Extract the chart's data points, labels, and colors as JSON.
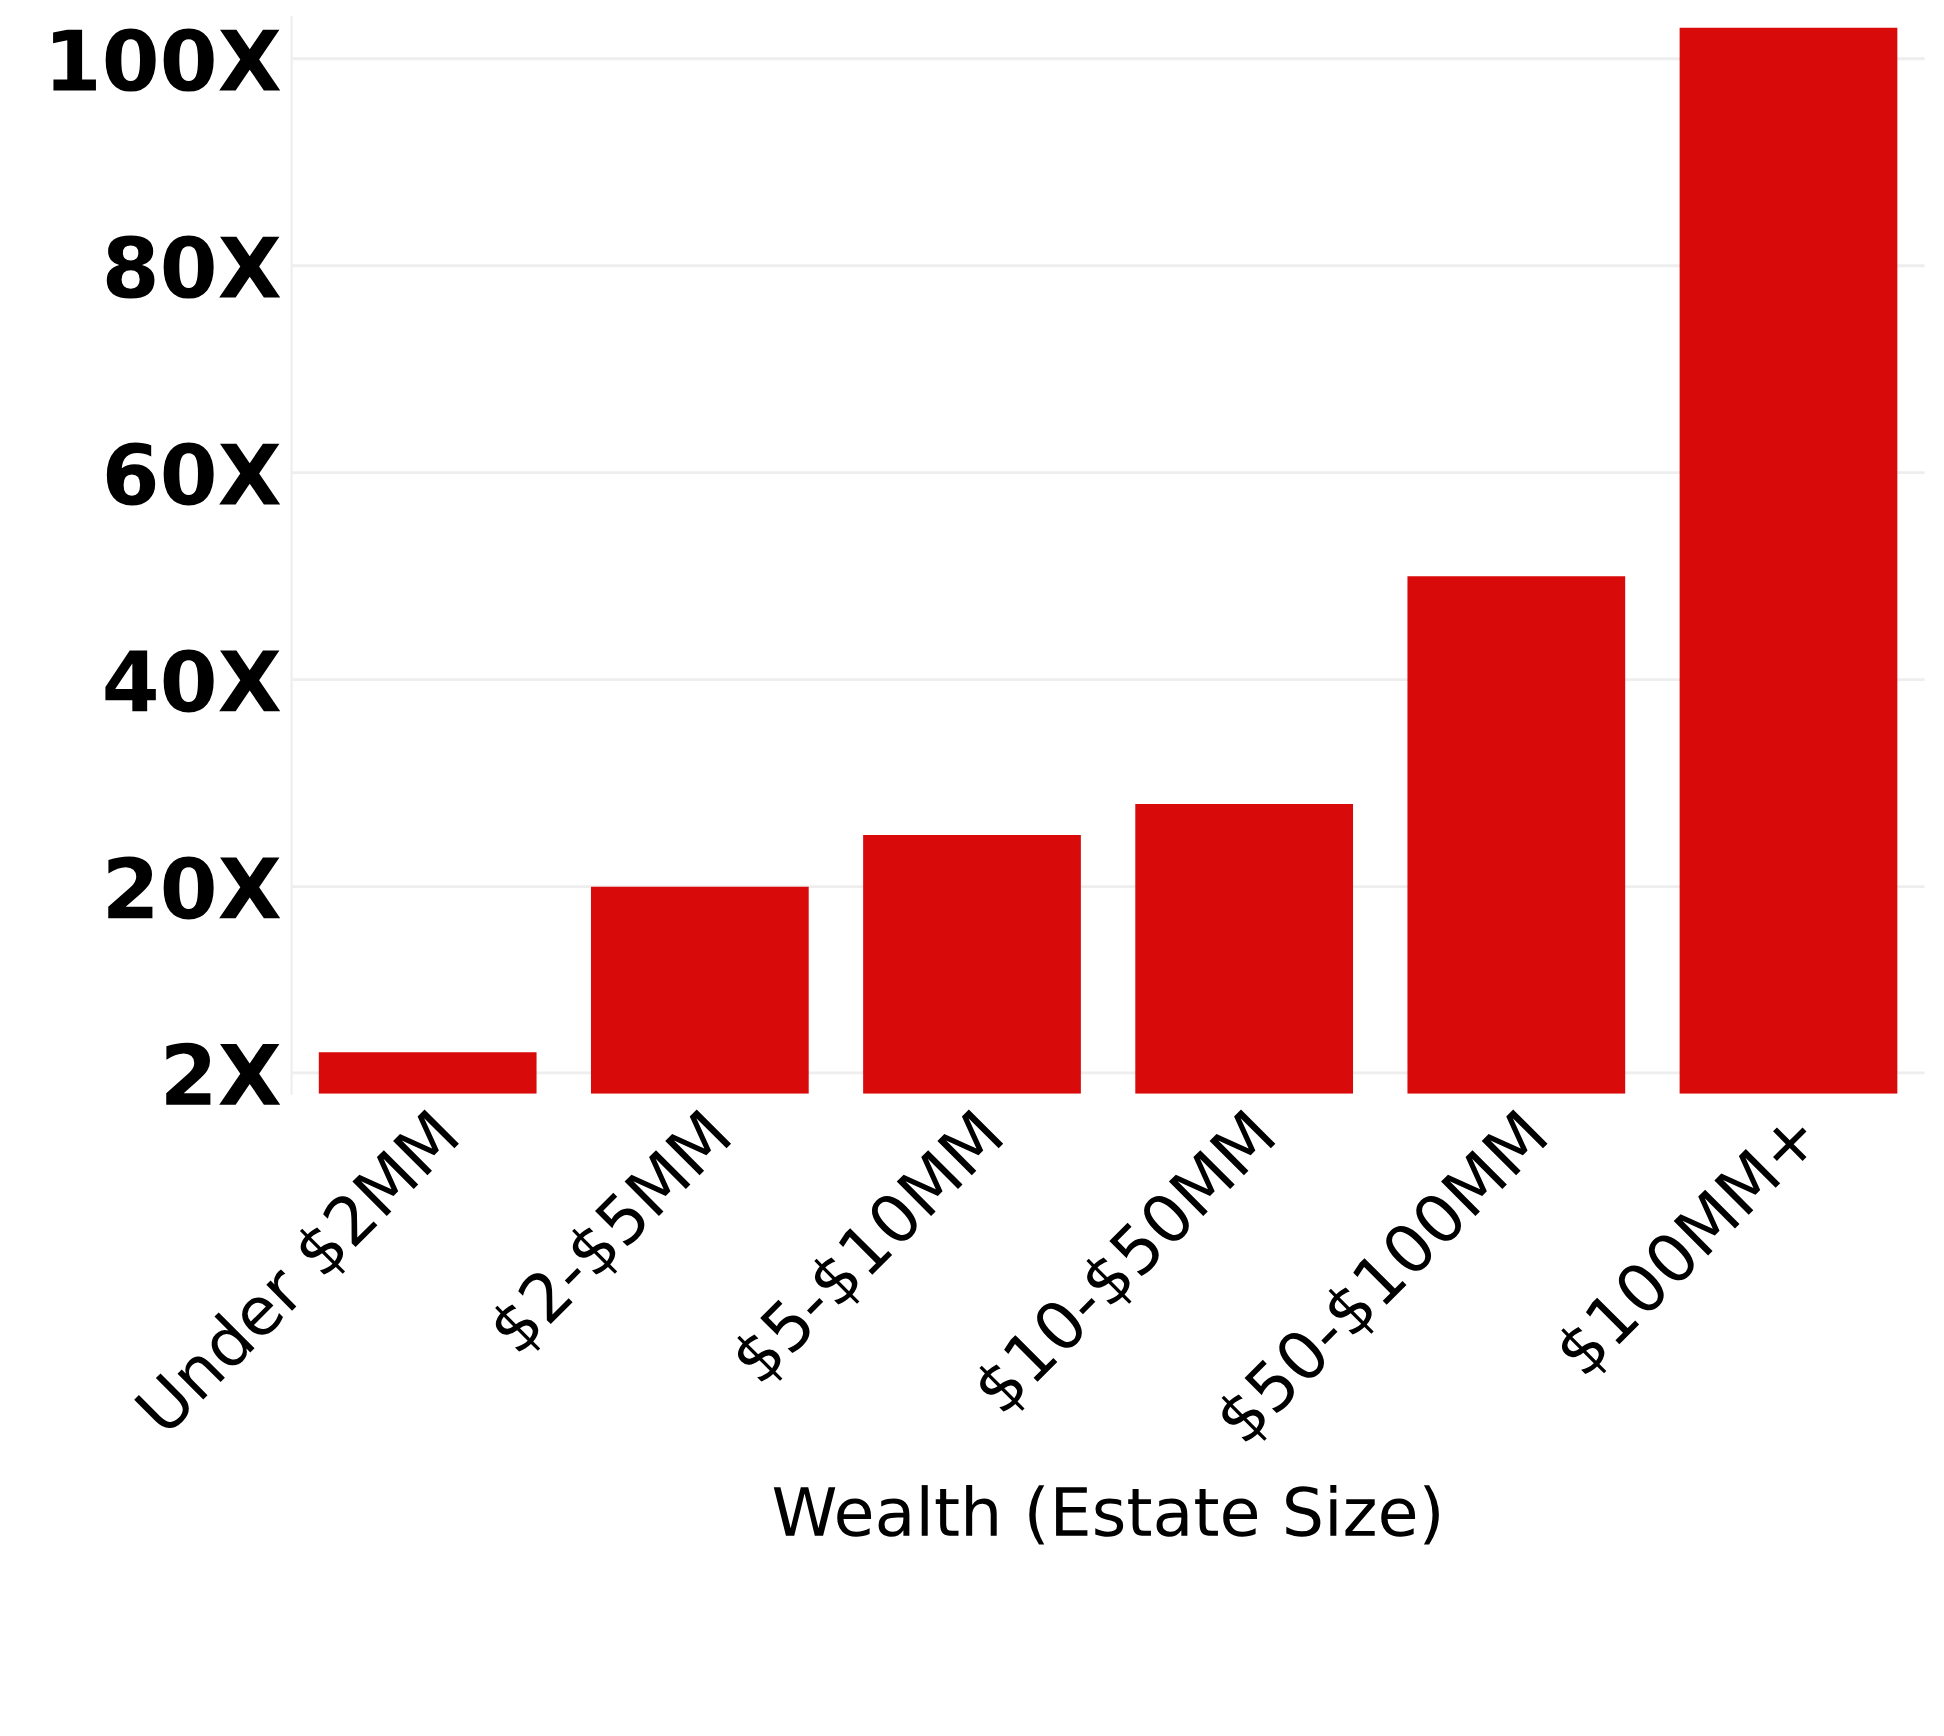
{
  "chart_data": {
    "type": "bar",
    "xlabel": "Wealth (Estate Size)",
    "categories": [
      "Under $2MM",
      "$2-$5MM",
      "$5-$10MM",
      "$10-$50MM",
      "$50-$100MM",
      "$100MM+"
    ],
    "values": [
      4,
      20,
      25,
      28,
      50,
      103
    ],
    "color": "#d80a0a",
    "ylim": [
      0,
      104
    ],
    "yticks": [
      {
        "value": 2,
        "label": "2X"
      },
      {
        "value": 20,
        "label": "20X"
      },
      {
        "value": 40,
        "label": "40X"
      },
      {
        "value": 60,
        "label": "60X"
      },
      {
        "value": 80,
        "label": "80X"
      },
      {
        "value": 100,
        "label": "100X"
      }
    ],
    "grid": "y"
  }
}
